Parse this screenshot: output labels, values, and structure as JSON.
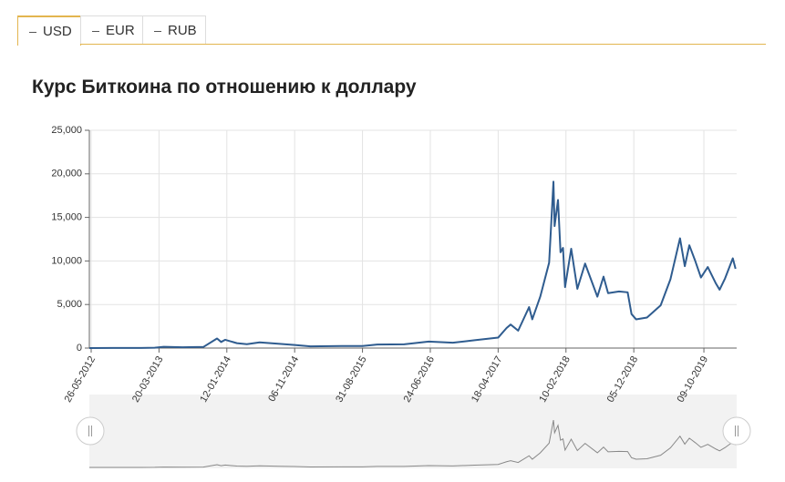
{
  "tabs": [
    "USD",
    "EUR",
    "RUB"
  ],
  "chart_data": {
    "type": "line",
    "title": "Курс Биткоина по отношению к доллару",
    "xlim": [
      "18-05-2012",
      "01-03-2020"
    ],
    "xticks": [
      "26-05-2012",
      "20-03-2013",
      "12-01-2014",
      "06-11-2014",
      "31-08-2015",
      "24-06-2016",
      "18-04-2017",
      "10-02-2018",
      "05-12-2018",
      "09-10-2019"
    ],
    "ylim": [
      0,
      25000
    ],
    "yticks": [
      0,
      {
        "value": 5000,
        "label": "5,000"
      },
      {
        "value": 10000,
        "label": "10,000"
      },
      {
        "value": 15000,
        "label": "15,000"
      },
      {
        "value": 20000,
        "label": "20,000"
      },
      {
        "value": 25000,
        "label": "25,000"
      }
    ],
    "grid": true,
    "x": [
      "18-05-2012",
      "01-09-2012",
      "01-01-2013",
      "01-03-2013",
      "10-04-2013",
      "01-07-2013",
      "01-10-2013",
      "30-11-2013",
      "18-12-2013",
      "05-01-2014",
      "25-02-2014",
      "10-04-2014",
      "05-06-2014",
      "01-09-2014",
      "06-11-2014",
      "14-01-2015",
      "01-06-2015",
      "31-08-2015",
      "04-11-2015",
      "01-03-2016",
      "17-06-2016",
      "01-10-2016",
      "05-01-2017",
      "18-04-2017",
      "25-05-2017",
      "12-06-2017",
      "15-07-2017",
      "01-09-2017",
      "15-09-2017",
      "20-10-2017",
      "28-11-2017",
      "17-12-2017",
      "22-12-2017",
      "06-01-2018",
      "17-01-2018",
      "28-01-2018",
      "06-02-2018",
      "05-03-2018",
      "01-04-2018",
      "05-05-2018",
      "28-06-2018",
      "25-07-2018",
      "14-08-2018",
      "01-10-2018",
      "08-11-2018",
      "25-11-2018",
      "15-12-2018",
      "01-02-2019",
      "02-04-2019",
      "15-05-2019",
      "26-06-2019",
      "17-07-2019",
      "06-08-2019",
      "01-09-2019",
      "26-09-2019",
      "26-10-2019",
      "01-12-2019",
      "17-12-2019",
      "10-01-2020",
      "13-02-2020",
      "25-02-2020"
    ],
    "series": [
      {
        "name": "USD",
        "color": "#2f5c8f",
        "values": [
          5,
          10,
          13,
          35,
          140,
          90,
          125,
          1100,
          700,
          950,
          560,
          440,
          650,
          480,
          350,
          200,
          230,
          230,
          400,
          430,
          750,
          610,
          900,
          1200,
          2300,
          2700,
          2000,
          4700,
          3300,
          5900,
          9800,
          19100,
          14000,
          17000,
          11000,
          11500,
          7000,
          11400,
          6800,
          9700,
          5900,
          8200,
          6300,
          6500,
          6400,
          3900,
          3300,
          3500,
          4900,
          7900,
          12600,
          9400,
          11800,
          10000,
          8100,
          9300,
          7400,
          6700,
          8000,
          10300,
          9100
        ]
      }
    ]
  }
}
